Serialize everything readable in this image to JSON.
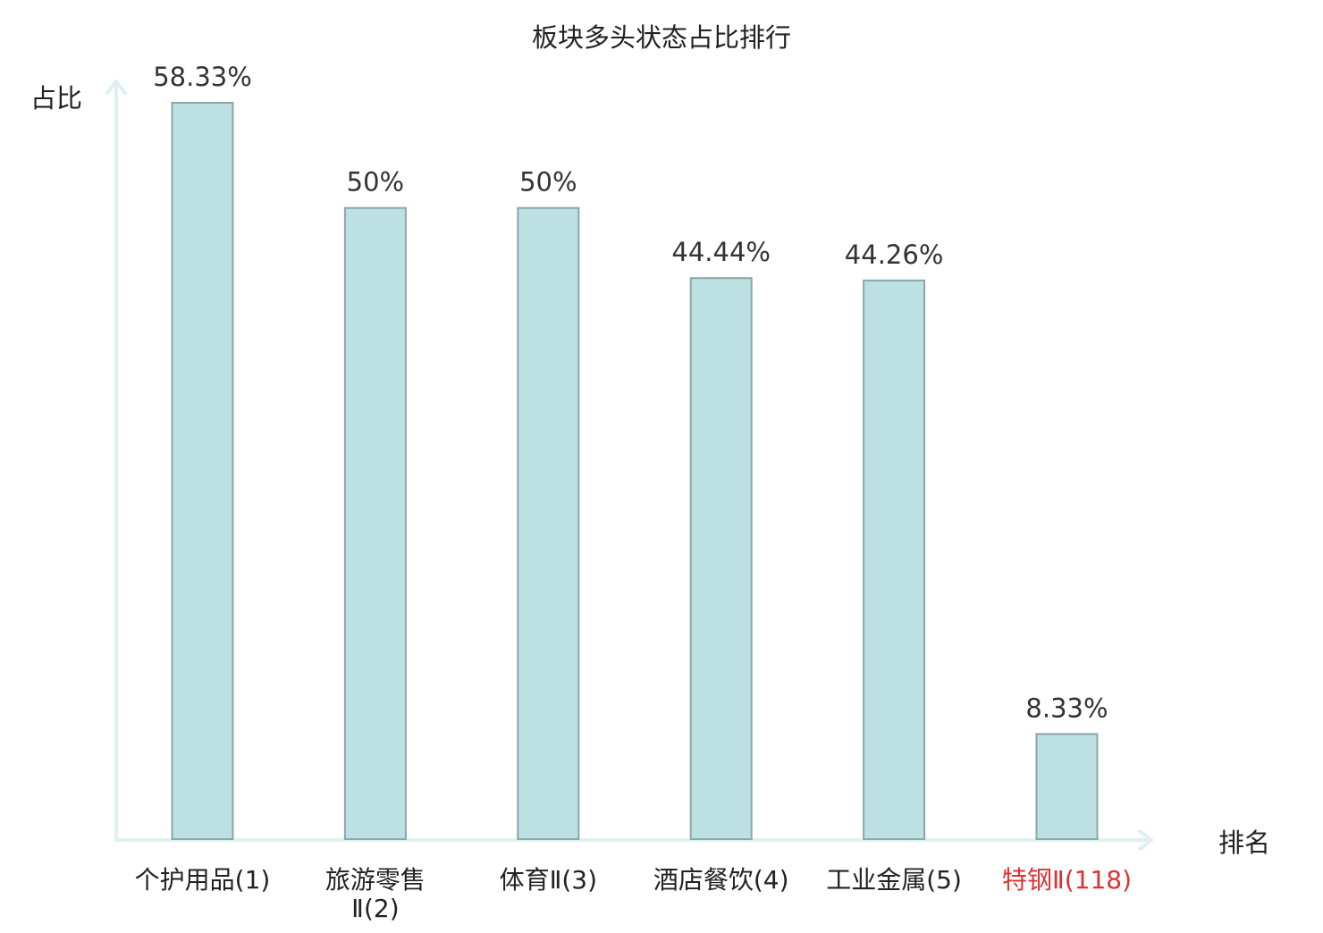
{
  "chart_data": {
    "type": "bar",
    "title": "板块多头状态占比排行",
    "ylabel": "占比",
    "xlabel": "排名",
    "categories": [
      [
        "个护用品(1)"
      ],
      [
        "旅游零售",
        "Ⅱ(2)"
      ],
      [
        "体育Ⅱ(3)"
      ],
      [
        "酒店餐饮(4)"
      ],
      [
        "工业金属(5)"
      ],
      [
        "特钢Ⅱ(118)"
      ]
    ],
    "values": [
      58.33,
      50,
      50,
      44.44,
      44.26,
      8.33
    ],
    "value_labels": [
      "58.33%",
      "50%",
      "50%",
      "44.44%",
      "44.26%",
      "8.33%"
    ],
    "highlight_index": 5,
    "ylim": [
      0,
      58.33
    ],
    "grid": false,
    "colors": {
      "bar_fill": "#bde0e3",
      "bar_stroke": "#8aa7aa",
      "axis": "#dff0ee",
      "text": "#333333",
      "highlight_text": "#e03030"
    }
  }
}
